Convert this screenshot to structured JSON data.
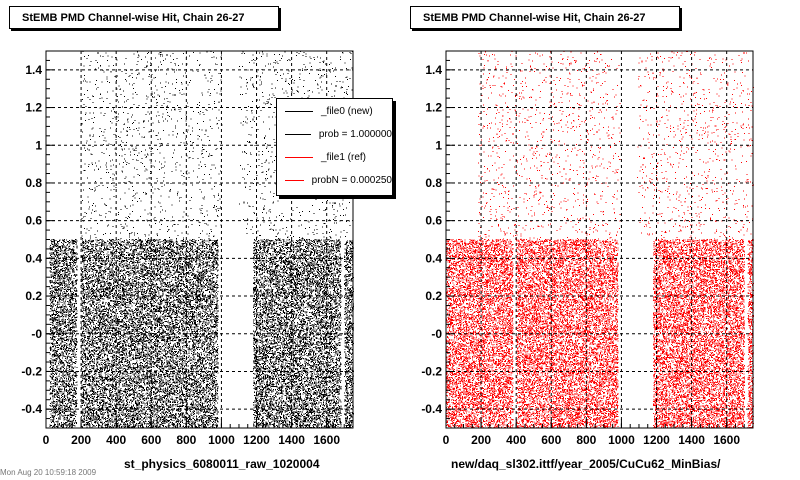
{
  "colors": {
    "ref_black": "#000000",
    "new_red": "#ff0000",
    "frame": "#000000"
  },
  "footer": "Mon Aug 20 10:59:18 2009",
  "legend": {
    "items": [
      {
        "label": "_file0 (new)",
        "color": "#000000"
      },
      {
        "label": "prob = 1.000000",
        "color": "#000000"
      },
      {
        "label": "_file1 (ref)",
        "color": "#ff0000"
      },
      {
        "label": "probN = 0.000250",
        "color": "#ff0000"
      }
    ]
  },
  "chart_data": [
    {
      "type": "scatter",
      "title": "StEMB PMD Channel-wise Hit, Chain 26-27",
      "xlabel": "st_physics_6080011_raw_1020004",
      "ylabel": "",
      "xlim": [
        0,
        1750
      ],
      "ylim": [
        -0.5,
        1.5
      ],
      "xticks": [
        0,
        200,
        400,
        600,
        800,
        1000,
        1200,
        1400,
        1600
      ],
      "xtick_labels": [
        "0",
        "200",
        "400",
        "600",
        "800",
        "1000",
        "1200",
        "1400",
        "1600"
      ],
      "yticks": [
        -0.4,
        -0.2,
        0,
        0.2,
        0.4,
        0.6,
        0.8,
        1.0,
        1.2,
        1.4
      ],
      "ytick_labels": [
        "-0.4",
        "-0.2",
        "-0",
        "0.2",
        "0.4",
        "0.6",
        "0.8",
        "1",
        "1.2",
        "1.4"
      ],
      "grid": true,
      "legend": "top-right",
      "series": [
        {
          "color": "#000000",
          "dense_band": {
            "y_range": [
              -0.5,
              0.5
            ],
            "x_segments": [
              [
                20,
                980
              ],
              [
                1180,
                1750
              ]
            ],
            "gaps": [
              [
                175,
                200
              ],
              [
                1680,
                1700
              ]
            ]
          },
          "sparse_band": {
            "y_range": [
              0.5,
              1.5
            ],
            "x_segments": [
              [
                200,
                840
              ],
              [
                860,
                1750
              ]
            ],
            "gaps": [
              [
                1000,
                1100
              ]
            ]
          }
        }
      ]
    },
    {
      "type": "scatter",
      "title": "StEMB PMD Channel-wise Hit, Chain 26-27",
      "xlabel": "new/daq_sl302.ittf/year_2005/CuCu62_MinBias/",
      "ylabel": "",
      "xlim": [
        0,
        1750
      ],
      "ylim": [
        -0.5,
        1.5
      ],
      "xticks": [
        0,
        200,
        400,
        600,
        800,
        1000,
        1200,
        1400,
        1600
      ],
      "xtick_labels": [
        "0",
        "200",
        "400",
        "600",
        "800",
        "1000",
        "1200",
        "1400",
        "1600"
      ],
      "yticks": [
        -0.4,
        -0.2,
        0,
        0.2,
        0.4,
        0.6,
        0.8,
        1.0,
        1.2,
        1.4
      ],
      "ytick_labels": [
        "-0.4",
        "-0.2",
        "-0",
        "0.2",
        "0.4",
        "0.6",
        "0.8",
        "1",
        "1.2",
        "1.4"
      ],
      "grid": true,
      "legend": "none",
      "series": [
        {
          "color": "#ff0000",
          "dense_band": {
            "y_range": [
              -0.5,
              0.5
            ],
            "x_segments": [
              [
                0,
                980
              ],
              [
                1180,
                1750
              ]
            ],
            "gaps": [
              [
                380,
                400
              ],
              [
                1700,
                1720
              ]
            ]
          },
          "sparse_band": {
            "y_range": [
              0.5,
              1.5
            ],
            "x_segments": [
              [
                180,
                1750
              ]
            ],
            "gaps": [
              [
                990,
                1090
              ]
            ]
          }
        }
      ]
    }
  ]
}
